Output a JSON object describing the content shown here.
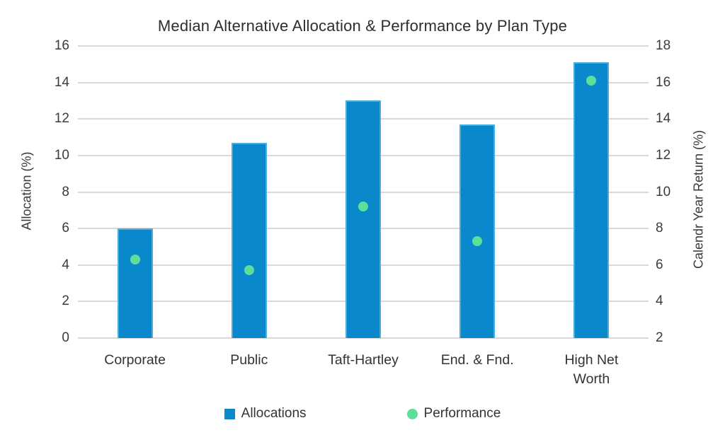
{
  "chart_data": {
    "type": "bar",
    "title": "Median Alternative Allocation & Performance by Plan Type",
    "categories": [
      "Corporate",
      "Public",
      "Taft-Hartley",
      "End. & Fnd.",
      "High Net Worth"
    ],
    "series": [
      {
        "name": "Allocations",
        "kind": "bar",
        "axis": "left",
        "values": [
          6.0,
          10.7,
          13.0,
          11.7,
          15.1
        ],
        "color": "#0989cb",
        "border_color": "#4aaedd",
        "marker": "square"
      },
      {
        "name": "Performance",
        "kind": "scatter",
        "axis": "right",
        "values": [
          6.3,
          5.7,
          9.2,
          7.3,
          16.1
        ],
        "color": "#5cdf9b",
        "marker": "circle"
      }
    ],
    "left_axis": {
      "label": "Allocation (%)",
      "min": 0,
      "max": 16,
      "ticks": [
        0,
        2,
        4,
        6,
        8,
        10,
        12,
        14,
        16
      ]
    },
    "right_axis": {
      "label": "Calendr Year Return (%)",
      "min": 2,
      "max": 18,
      "ticks": [
        2,
        4,
        6,
        8,
        10,
        12,
        14,
        16,
        18
      ]
    },
    "grid": true,
    "legend_position": "bottom",
    "styles": {
      "gridline_color": "#d9d9d9",
      "text_color": "#3b3b3b",
      "title_color": "#2e2e2e",
      "background": "#ffffff"
    }
  }
}
